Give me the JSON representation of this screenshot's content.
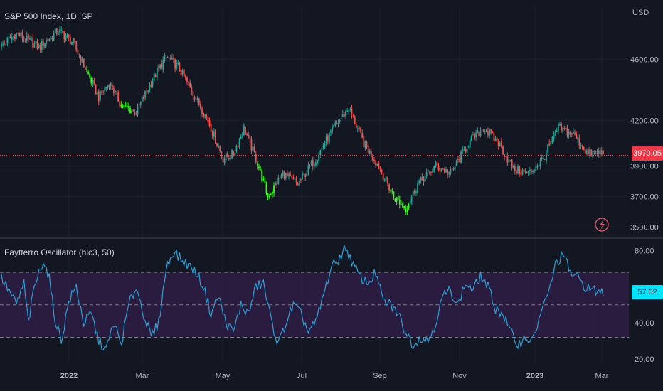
{
  "main_title": "S&P 500 Index, 1D, SP",
  "currency": "USD",
  "osc_title": "Faytterro Oscillator (hlc3, 50)",
  "price_label": "3970.05",
  "osc_label": "57.02",
  "colors": {
    "bg": "#131722",
    "up": "#26a69a",
    "down": "#ef5350",
    "signal": "#39ff14",
    "osc_line": "#2a9fd6",
    "band": "#3a1f52",
    "grid": "#1e222d",
    "price_tag": "#f23645",
    "osc_tag": "#00e5ff"
  },
  "chart_data": [
    {
      "type": "candlestick",
      "ylim": [
        3450,
        4850
      ],
      "y_ticks": [
        "4600.00",
        "4200.00",
        "3900.00",
        "3700.00",
        "3500.00"
      ],
      "y_tick_values": [
        4600,
        4200,
        3900,
        3700,
        3500
      ],
      "last_close": 3970.05,
      "x_ticks": [
        "2022",
        "Mar",
        "May",
        "Jul",
        "Sep",
        "Nov",
        "2023",
        "Mar"
      ],
      "anchors": [
        [
          0,
          4690
        ],
        [
          10,
          4770
        ],
        [
          25,
          4680
        ],
        [
          38,
          4790
        ],
        [
          48,
          4710
        ],
        [
          58,
          4500
        ],
        [
          65,
          4350
        ],
        [
          72,
          4450
        ],
        [
          80,
          4300
        ],
        [
          90,
          4250
        ],
        [
          100,
          4450
        ],
        [
          110,
          4620
        ],
        [
          118,
          4550
        ],
        [
          128,
          4380
        ],
        [
          138,
          4200
        ],
        [
          148,
          3950
        ],
        [
          155,
          3980
        ],
        [
          162,
          4150
        ],
        [
          170,
          3950
        ],
        [
          178,
          3700
        ],
        [
          188,
          3850
        ],
        [
          198,
          3780
        ],
        [
          210,
          3950
        ],
        [
          222,
          4150
        ],
        [
          232,
          4280
        ],
        [
          242,
          4050
        ],
        [
          252,
          3900
        ],
        [
          262,
          3700
        ],
        [
          270,
          3620
        ],
        [
          278,
          3780
        ],
        [
          290,
          3900
        ],
        [
          300,
          3850
        ],
        [
          312,
          4050
        ],
        [
          322,
          4150
        ],
        [
          332,
          4050
        ],
        [
          342,
          3880
        ],
        [
          352,
          3850
        ],
        [
          362,
          3950
        ],
        [
          372,
          4150
        ],
        [
          382,
          4110
        ],
        [
          392,
          3980
        ],
        [
          402,
          3990
        ]
      ],
      "green_signal_ranges": [
        [
          57,
          60
        ],
        [
          80,
          87
        ],
        [
          171,
          182
        ],
        [
          260,
          272
        ]
      ]
    },
    {
      "type": "line",
      "ylim": [
        18,
        85
      ],
      "y_ticks": [
        "80.00",
        "40.00",
        "20.00"
      ],
      "y_tick_values": [
        80,
        40,
        20
      ],
      "band": [
        32,
        68
      ],
      "dashed_levels": [
        68,
        50,
        32
      ],
      "last_value": 57.02,
      "anchors": [
        [
          0,
          65
        ],
        [
          5,
          58
        ],
        [
          10,
          50
        ],
        [
          15,
          62
        ],
        [
          18,
          40
        ],
        [
          22,
          60
        ],
        [
          28,
          75
        ],
        [
          32,
          65
        ],
        [
          35,
          45
        ],
        [
          40,
          30
        ],
        [
          45,
          52
        ],
        [
          50,
          60
        ],
        [
          55,
          40
        ],
        [
          60,
          45
        ],
        [
          65,
          30
        ],
        [
          70,
          25
        ],
        [
          75,
          40
        ],
        [
          80,
          28
        ],
        [
          85,
          50
        ],
        [
          90,
          60
        ],
        [
          95,
          45
        ],
        [
          100,
          32
        ],
        [
          105,
          40
        ],
        [
          110,
          70
        ],
        [
          115,
          80
        ],
        [
          120,
          75
        ],
        [
          125,
          72
        ],
        [
          130,
          68
        ],
        [
          135,
          60
        ],
        [
          140,
          45
        ],
        [
          145,
          55
        ],
        [
          150,
          40
        ],
        [
          155,
          35
        ],
        [
          160,
          50
        ],
        [
          165,
          45
        ],
        [
          170,
          60
        ],
        [
          175,
          62
        ],
        [
          180,
          42
        ],
        [
          185,
          28
        ],
        [
          190,
          40
        ],
        [
          195,
          50
        ],
        [
          200,
          45
        ],
        [
          205,
          35
        ],
        [
          210,
          40
        ],
        [
          215,
          55
        ],
        [
          220,
          70
        ],
        [
          225,
          75
        ],
        [
          230,
          82
        ],
        [
          235,
          72
        ],
        [
          240,
          65
        ],
        [
          245,
          62
        ],
        [
          250,
          68
        ],
        [
          255,
          52
        ],
        [
          260,
          50
        ],
        [
          265,
          45
        ],
        [
          270,
          35
        ],
        [
          275,
          28
        ],
        [
          280,
          32
        ],
        [
          285,
          30
        ],
        [
          290,
          40
        ],
        [
          295,
          55
        ],
        [
          300,
          58
        ],
        [
          305,
          50
        ],
        [
          310,
          62
        ],
        [
          315,
          58
        ],
        [
          320,
          66
        ],
        [
          325,
          60
        ],
        [
          330,
          48
        ],
        [
          335,
          45
        ],
        [
          340,
          35
        ],
        [
          345,
          28
        ],
        [
          350,
          32
        ],
        [
          355,
          30
        ],
        [
          360,
          45
        ],
        [
          365,
          55
        ],
        [
          370,
          72
        ],
        [
          375,
          78
        ],
        [
          380,
          68
        ],
        [
          385,
          65
        ],
        [
          390,
          60
        ],
        [
          395,
          58
        ],
        [
          402,
          57
        ]
      ]
    }
  ]
}
